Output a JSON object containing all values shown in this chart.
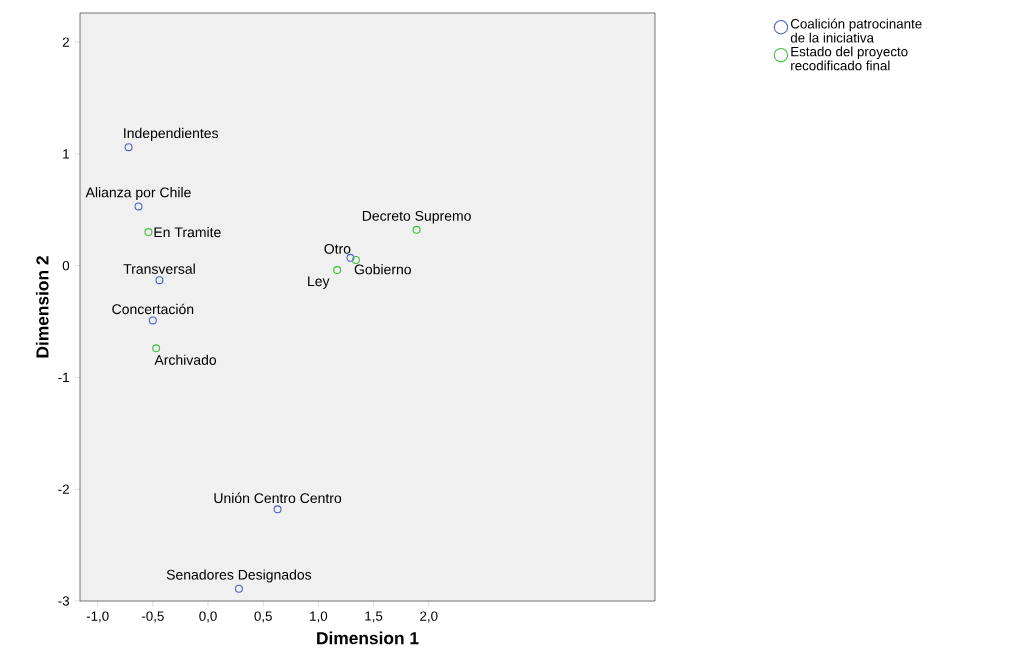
{
  "chart_data": {
    "type": "scatter",
    "xlabel": "Dimension 1",
    "ylabel": "Dimension 2",
    "xlim": [
      -1.16,
      4.05
    ],
    "ylim": [
      -3,
      2.26
    ],
    "xticks": [
      {
        "value": -1,
        "label": "-1,0"
      },
      {
        "value": -0.5,
        "label": "-0,5"
      },
      {
        "value": 0,
        "label": "0,0"
      },
      {
        "value": 0.5,
        "label": "0,5"
      },
      {
        "value": 1,
        "label": "1,0"
      },
      {
        "value": 1.5,
        "label": "1,5"
      },
      {
        "value": 2,
        "label": "2,0"
      }
    ],
    "yticks": [
      -3,
      -2,
      -1,
      0,
      1,
      2
    ],
    "grid": false,
    "legend": "top right",
    "marker": "circle",
    "series": [
      {
        "name": "Coalición patrocinante de la iniciativa",
        "color": "#4a5ec4",
        "x": [
          -0.72,
          -0.63,
          -0.44,
          -0.5,
          1.29,
          0.63,
          0.28
        ],
        "values": [
          1.06,
          0.53,
          -0.13,
          -0.49,
          0.07,
          -2.18,
          -2.89
        ]
      },
      {
        "name": "Estado del proyecto recodificado final",
        "color": "#3cbf3c",
        "x": [
          -0.54,
          -0.47,
          1.34,
          1.17,
          1.89
        ],
        "values": [
          0.3,
          -0.74,
          0.05,
          -0.04,
          0.32
        ]
      }
    ],
    "annotations": [
      {
        "text": "Independientes",
        "x": -0.72,
        "y": 1.06
      },
      {
        "text": "Alianza por Chile",
        "x": -0.63,
        "y": 0.53
      },
      {
        "text": "Transversal",
        "x": -0.44,
        "y": -0.13
      },
      {
        "text": "Concertación",
        "x": -0.5,
        "y": -0.49
      },
      {
        "text": "Gobierno",
        "x": 1.29,
        "y": 0.07
      },
      {
        "text": "Unión Centro Centro",
        "x": 0.63,
        "y": -2.18
      },
      {
        "text": "Senadores Designados",
        "x": 0.28,
        "y": -2.89
      },
      {
        "text": "En Tramite",
        "x": -0.54,
        "y": 0.3
      },
      {
        "text": "Archivado",
        "x": -0.47,
        "y": -0.74
      },
      {
        "text": "Otro",
        "x": 1.34,
        "y": 0.05
      },
      {
        "text": "Ley",
        "x": 1.17,
        "y": -0.04
      },
      {
        "text": "Decreto Supremo",
        "x": 1.89,
        "y": 0.32
      }
    ]
  }
}
